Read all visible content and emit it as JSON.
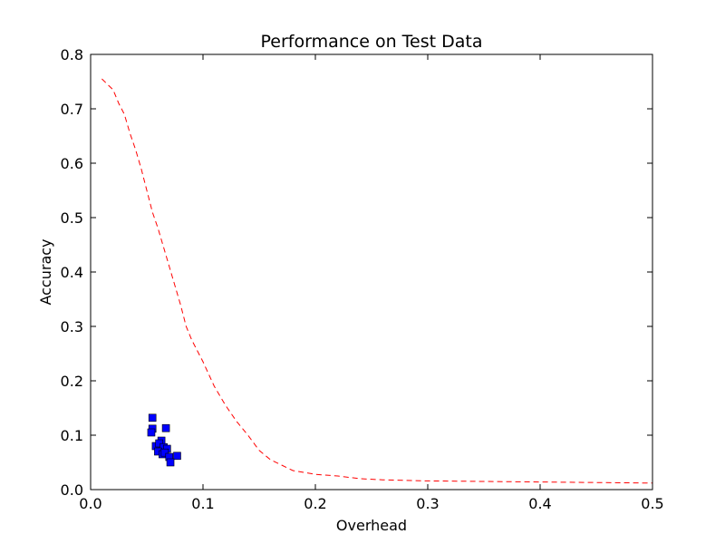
{
  "chart_data": {
    "type": "scatter",
    "title": "Performance on Test Data",
    "xlabel": "Overhead",
    "ylabel": "Accuracy",
    "xlim": [
      0.0,
      0.5
    ],
    "ylim": [
      0.0,
      0.8
    ],
    "xticks": [
      0.0,
      0.1,
      0.2,
      0.3,
      0.4,
      0.5
    ],
    "xtick_labels": [
      "0.0",
      "0.1",
      "0.2",
      "0.3",
      "0.4",
      "0.5"
    ],
    "yticks": [
      0.0,
      0.1,
      0.2,
      0.3,
      0.4,
      0.5,
      0.6,
      0.7,
      0.8
    ],
    "ytick_labels": [
      "0.0",
      "0.1",
      "0.2",
      "0.3",
      "0.4",
      "0.5",
      "0.6",
      "0.7",
      "0.8"
    ],
    "grid": false,
    "series": [
      {
        "kind": "line",
        "style": "dashed",
        "color": "#ff0000",
        "x": [
          0.01,
          0.015,
          0.02,
          0.025,
          0.03,
          0.035,
          0.04,
          0.045,
          0.05,
          0.055,
          0.06,
          0.065,
          0.07,
          0.075,
          0.08,
          0.085,
          0.09,
          0.095,
          0.1,
          0.11,
          0.12,
          0.13,
          0.14,
          0.15,
          0.16,
          0.17,
          0.18,
          0.2,
          0.22,
          0.24,
          0.26,
          0.28,
          0.3,
          0.35,
          0.4,
          0.45,
          0.5
        ],
        "y": [
          0.755,
          0.745,
          0.735,
          0.71,
          0.69,
          0.655,
          0.625,
          0.59,
          0.55,
          0.51,
          0.48,
          0.445,
          0.41,
          0.375,
          0.34,
          0.3,
          0.275,
          0.255,
          0.235,
          0.19,
          0.155,
          0.125,
          0.1,
          0.072,
          0.055,
          0.045,
          0.035,
          0.028,
          0.025,
          0.02,
          0.018,
          0.017,
          0.016,
          0.015,
          0.014,
          0.013,
          0.012
        ]
      },
      {
        "kind": "scatter",
        "marker": "square",
        "color": "#0000ff",
        "x": [
          0.055,
          0.055,
          0.054,
          0.067,
          0.063,
          0.058,
          0.061,
          0.065,
          0.068,
          0.06,
          0.064,
          0.066,
          0.07,
          0.077,
          0.071
        ],
        "y": [
          0.132,
          0.112,
          0.105,
          0.113,
          0.09,
          0.08,
          0.085,
          0.078,
          0.075,
          0.07,
          0.065,
          0.068,
          0.06,
          0.062,
          0.05
        ]
      }
    ]
  }
}
